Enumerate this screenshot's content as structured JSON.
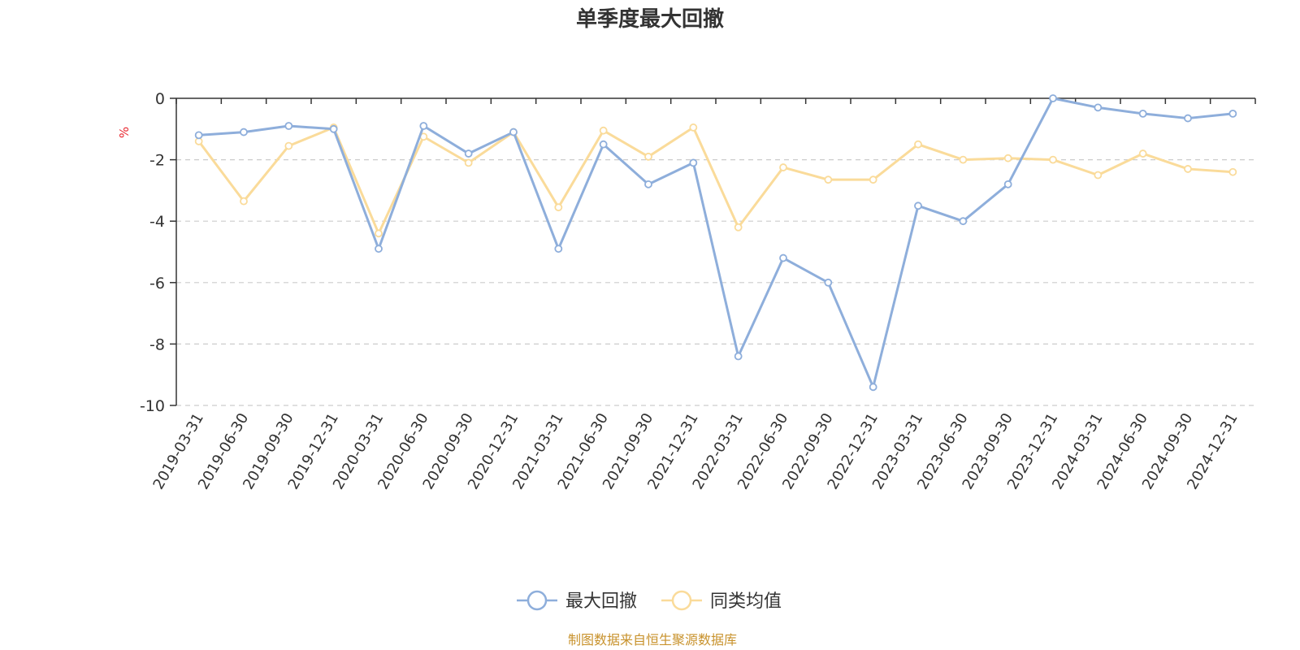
{
  "colors": {
    "series1": "#8EAEDB",
    "series2": "#FADB9A",
    "unit": "#E8262E",
    "source": "#C8922C",
    "axis": "#333333",
    "grid": "#CCCCCC"
  },
  "chart_data": {
    "type": "line",
    "title": "单季度最大回撤",
    "ylabel": "%",
    "ylim": [
      -10,
      0
    ],
    "yticks": [
      "0",
      "-2",
      "-4",
      "-6",
      "-8",
      "-10"
    ],
    "grid": "horizontal dashed",
    "legend_position": "bottom-center",
    "x": [
      "2019-03-31",
      "2019-06-30",
      "2019-09-30",
      "2019-12-31",
      "2020-03-31",
      "2020-06-30",
      "2020-09-30",
      "2020-12-31",
      "2021-03-31",
      "2021-06-30",
      "2021-09-30",
      "2021-12-31",
      "2022-03-31",
      "2022-06-30",
      "2022-09-30",
      "2022-12-31",
      "2023-03-31",
      "2023-06-30",
      "2023-09-30",
      "2023-12-31",
      "2024-03-31",
      "2024-06-30",
      "2024-09-30",
      "2024-12-31"
    ],
    "series": [
      {
        "name": "最大回撤",
        "values": [
          -1.2,
          -1.1,
          -0.9,
          -1.0,
          -4.9,
          -0.9,
          -1.8,
          -1.1,
          -4.9,
          -1.5,
          -2.8,
          -2.1,
          -8.4,
          -5.2,
          -6.0,
          -9.4,
          -3.5,
          -4.0,
          -2.8,
          0.0,
          -0.3,
          -0.5,
          -0.65,
          -0.5
        ]
      },
      {
        "name": "同类均值",
        "values": [
          -1.4,
          -3.35,
          -1.55,
          -0.95,
          -4.4,
          -1.25,
          -2.1,
          -1.1,
          -3.55,
          -1.05,
          -1.9,
          -0.95,
          -4.2,
          -2.25,
          -2.65,
          -2.65,
          -1.5,
          -2.0,
          -1.95,
          -2.0,
          -2.5,
          -1.8,
          -2.3,
          -2.4
        ]
      }
    ]
  },
  "legend": {
    "item1": "最大回撤",
    "item2": "同类均值"
  },
  "source_text": "制图数据来自恒生聚源数据库"
}
